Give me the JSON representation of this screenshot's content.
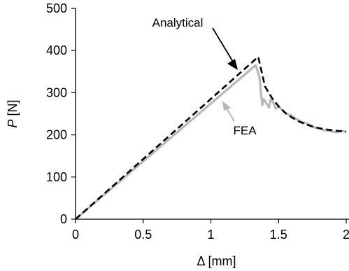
{
  "chart_data": {
    "type": "line",
    "xlabel": "Δ [mm]",
    "ylabel_symbol": "P",
    "ylabel_unit": "[N]",
    "xlim": [
      0,
      2
    ],
    "ylim": [
      0,
      500
    ],
    "x_ticks": [
      "0",
      "0.5",
      "1",
      "1.5",
      "2"
    ],
    "y_ticks": [
      "0",
      "100",
      "200",
      "300",
      "400",
      "500"
    ],
    "grid": false,
    "series": [
      {
        "name": "Analytical",
        "color": "#000000",
        "style": "dashed",
        "x": [
          0,
          1.35,
          1.4,
          1.45,
          1.5,
          1.55,
          1.6,
          1.65,
          1.7,
          1.75,
          1.8,
          1.85,
          1.9,
          1.95,
          2.0
        ],
        "y": [
          0,
          385,
          315,
          288,
          268,
          252,
          241,
          232,
          225,
          220,
          216,
          213,
          211,
          209,
          208
        ]
      },
      {
        "name": "FEA",
        "color": "#b8b8b8",
        "style": "solid",
        "x": [
          0,
          1.33,
          1.345,
          1.36,
          1.37,
          1.38,
          1.39,
          1.41,
          1.43,
          1.44,
          1.46,
          1.48,
          1.5,
          1.53,
          1.56,
          1.6,
          1.63,
          1.66,
          1.7,
          1.73,
          1.76,
          1.8,
          1.83,
          1.86,
          1.9,
          1.93,
          1.96,
          2.0
        ],
        "y": [
          0,
          365,
          352,
          335,
          300,
          270,
          285,
          275,
          265,
          283,
          278,
          262,
          268,
          258,
          250,
          245,
          238,
          232,
          228,
          224,
          218,
          215,
          212,
          210,
          208,
          206,
          210,
          207
        ]
      }
    ],
    "annotations": [
      {
        "text": "Analytical",
        "series": "Analytical"
      },
      {
        "text": "FEA",
        "series": "FEA"
      }
    ]
  }
}
